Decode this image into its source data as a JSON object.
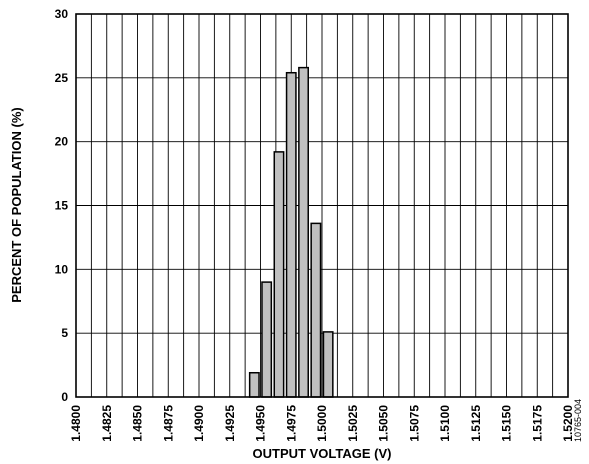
{
  "chart_data": {
    "type": "bar",
    "title": "",
    "xlabel": "OUTPUT VOLTAGE (V)",
    "ylabel": "PERCENT OF POPULATION (%)",
    "ylim": [
      0,
      30
    ],
    "y_ticks": [
      "0",
      "5",
      "10",
      "15",
      "20",
      "25",
      "30"
    ],
    "x_ticks": [
      "1.4800",
      "1.4825",
      "1.4850",
      "1.4875",
      "1.4900",
      "1.4925",
      "1.4950",
      "1.4975",
      "1.5000",
      "1.5025",
      "1.5050",
      "1.5075",
      "1.5100",
      "1.5125",
      "1.5150",
      "1.5175",
      "1.5200"
    ],
    "grid": true,
    "bar_fill": "#c0c0c0",
    "bars": [
      {
        "x": 1.4945,
        "value": 1.9
      },
      {
        "x": 1.4955,
        "value": 9.0
      },
      {
        "x": 1.4965,
        "value": 19.2
      },
      {
        "x": 1.4975,
        "value": 25.4
      },
      {
        "x": 1.4985,
        "value": 25.8
      },
      {
        "x": 1.4995,
        "value": 13.6
      },
      {
        "x": 1.5005,
        "value": 5.1
      }
    ]
  },
  "figure_id": "10765-004"
}
